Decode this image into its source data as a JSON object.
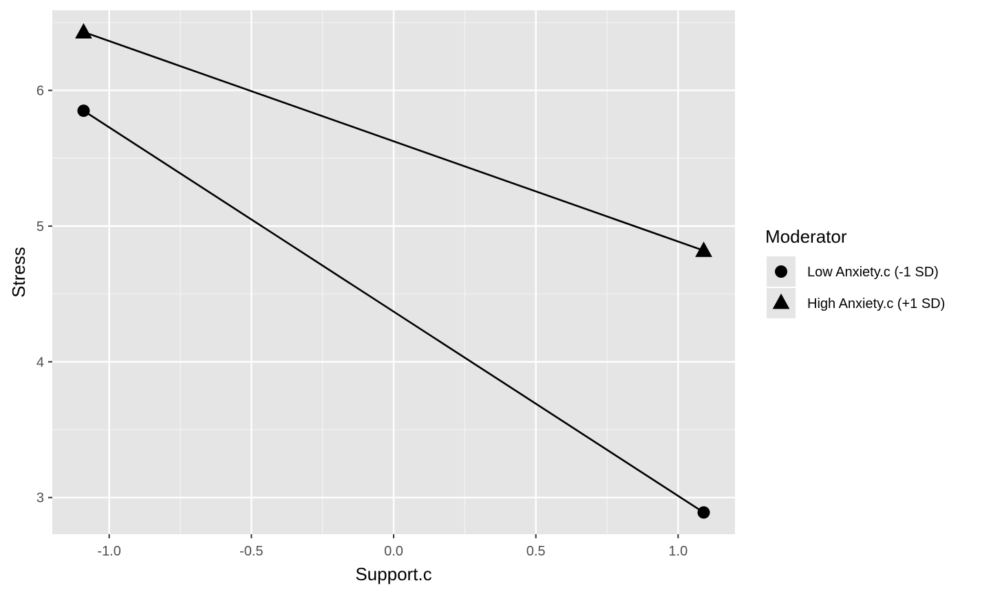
{
  "chart_data": {
    "type": "line",
    "xlabel": "Support.c",
    "ylabel": "Stress",
    "x": [
      -1.09,
      1.09
    ],
    "series": [
      {
        "name": "Low Anxiety.c (-1 SD)",
        "marker": "circle",
        "values": [
          5.85,
          2.89
        ]
      },
      {
        "name": "High Anxiety.c (+1 SD)",
        "marker": "triangle",
        "values": [
          6.43,
          4.82
        ]
      }
    ],
    "xlim": [
      -1.2,
      1.2
    ],
    "ylim": [
      2.73,
      6.59
    ],
    "xticks": [
      -1.0,
      -0.5,
      0.0,
      0.5,
      1.0
    ],
    "xtick_labels": [
      "-1.0",
      "-0.5",
      "0.0",
      "0.5",
      "1.0"
    ],
    "yticks": [
      3,
      4,
      5,
      6
    ],
    "ytick_labels": [
      "3",
      "4",
      "5",
      "6"
    ],
    "legend": {
      "title": "Moderator",
      "position": "right"
    },
    "grid": true,
    "colors": {
      "panel_background": "#e5e5e5",
      "grid_major": "#ffffff",
      "grid_minor": "#f2f2f2",
      "line": "#000000",
      "tick_label": "#4d4d4d",
      "legend_key_background": "#e5e5e5"
    }
  }
}
